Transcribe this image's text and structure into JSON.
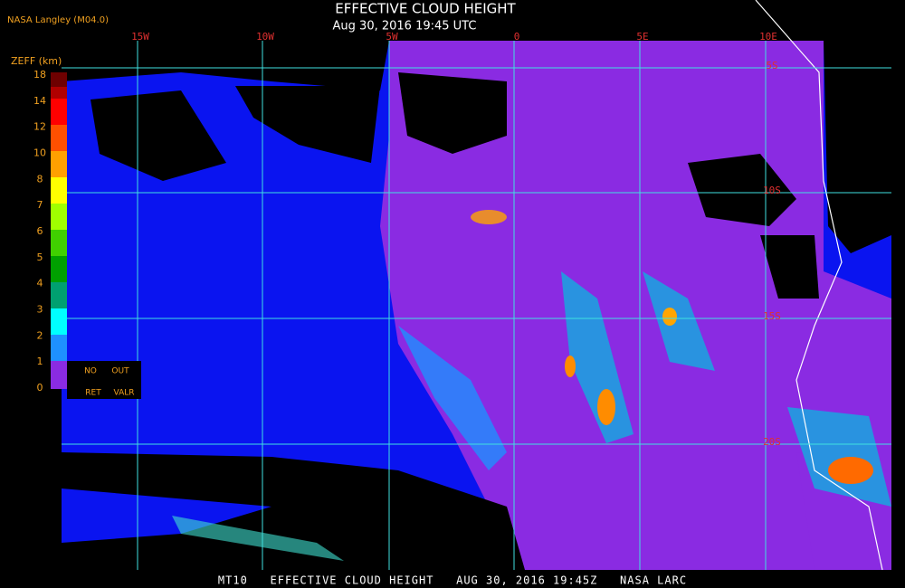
{
  "header": {
    "source": "NASA Langley (M04.0)",
    "title": "EFFECTIVE CLOUD HEIGHT",
    "subtitle": "Aug 30, 2016 19:45 UTC"
  },
  "map": {
    "lon_labels": [
      "15W",
      "10W",
      "5W",
      "0",
      "5E",
      "10E"
    ],
    "lat_labels": [
      "5S",
      "10S",
      "15S",
      "20S"
    ]
  },
  "legend": {
    "title": "ZEFF (km)",
    "labels": [
      "18",
      "14",
      "12",
      "10",
      "8",
      "7",
      "6",
      "5",
      "4",
      "3",
      "2",
      "1",
      "0"
    ],
    "no_ret": [
      "NO",
      "RET"
    ],
    "out_valr": [
      "OUT",
      "VALR"
    ]
  },
  "footer": "MT10   EFFECTIVE CLOUD HEIGHT   AUG 30, 2016 19:45Z   NASA LARC"
}
